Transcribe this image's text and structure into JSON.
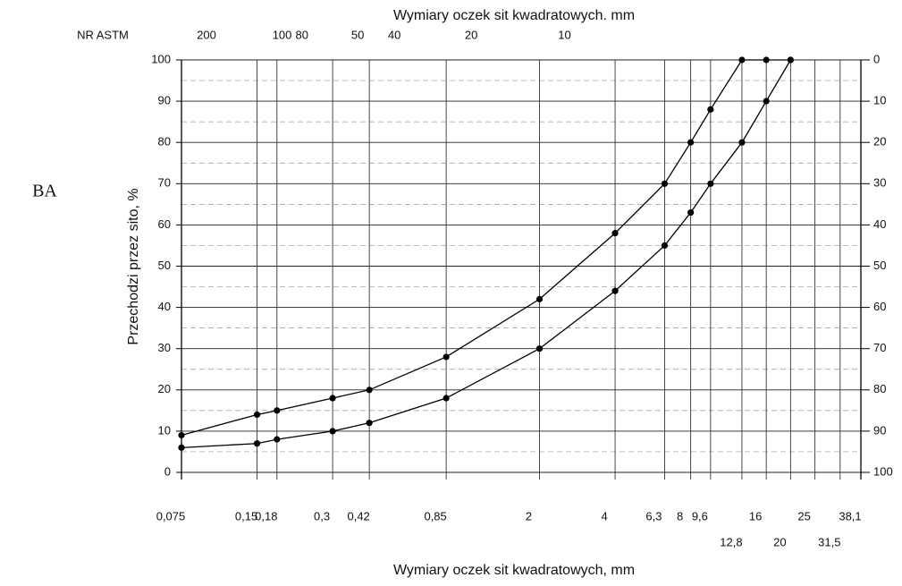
{
  "chart_data": {
    "type": "line",
    "title": "Wymiary oczek sit kwadratowych. mm",
    "xlabel": "Wymiary oczek sit kwadratowych, mm",
    "ylabel": "Przechodzi przez sito, %",
    "top_axis_label": "NR ASTM",
    "annotation": "BA",
    "xscale": "log",
    "x": [
      0.075,
      0.15,
      0.18,
      0.3,
      0.42,
      0.85,
      2,
      4,
      6.3,
      8,
      9.6,
      12.8,
      16,
      20
    ],
    "series": [
      {
        "color": "#000000",
        "values": [
          9,
          14,
          15,
          18,
          20,
          28,
          42,
          58,
          70,
          80,
          88,
          100,
          100,
          100
        ]
      },
      {
        "color": "#000000",
        "values": [
          6,
          7,
          8,
          10,
          12,
          18,
          30,
          44,
          55,
          63,
          70,
          80,
          90,
          100
        ]
      }
    ],
    "xlim": [
      0.075,
      38.1
    ],
    "xticks": [
      {
        "value": 0.075,
        "label": "0,075"
      },
      {
        "value": 0.15,
        "label": "0,15"
      },
      {
        "value": 0.18,
        "label": "0,18"
      },
      {
        "value": 0.3,
        "label": "0,3"
      },
      {
        "value": 0.42,
        "label": "0,42"
      },
      {
        "value": 0.85,
        "label": "0,85"
      },
      2,
      4,
      {
        "value": 6.3,
        "label": "6,3"
      },
      8,
      {
        "value": 9.6,
        "label": "9,6"
      },
      16,
      25,
      {
        "value": 38.1,
        "label": "38,1"
      }
    ],
    "xticks_lower": [
      {
        "value": 12.8,
        "label": "12,8"
      },
      20,
      {
        "value": 31.5,
        "label": "31,5"
      }
    ],
    "top_ticks": [
      {
        "value": 0.075,
        "label": "200"
      },
      {
        "value": 0.15,
        "label": "100"
      },
      {
        "value": 0.18,
        "label": "80"
      },
      {
        "value": 0.3,
        "label": "50"
      },
      {
        "value": 0.42,
        "label": "40"
      },
      {
        "value": 0.85,
        "label": "20"
      },
      {
        "value": 2,
        "label": "10"
      }
    ],
    "ylim": [
      0,
      100
    ],
    "yticks": [
      0,
      10,
      20,
      30,
      40,
      50,
      60,
      70,
      80,
      90,
      100
    ],
    "yminorticks": [
      5,
      15,
      25,
      35,
      45,
      55,
      65,
      75,
      85,
      95
    ],
    "y2lim": [
      100,
      0
    ],
    "y2ticks": [
      0,
      10,
      20,
      30,
      40,
      50,
      60,
      70,
      80,
      90,
      100
    ],
    "grid": true
  }
}
